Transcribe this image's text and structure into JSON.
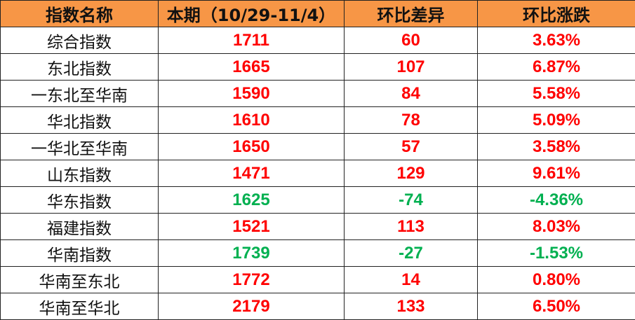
{
  "colors": {
    "header_bg": "#F79646",
    "up": "#FF0000",
    "down": "#00B050"
  },
  "headers": [
    "指数名称",
    "本期（10/29-11/4）",
    "环比差异",
    "环比涨跌"
  ],
  "rows": [
    {
      "name": "综合指数",
      "value": "1711",
      "diff": "60",
      "pct": "3.63%",
      "trend": "up"
    },
    {
      "name": "东北指数",
      "value": "1665",
      "diff": "107",
      "pct": "6.87%",
      "trend": "up"
    },
    {
      "name": "一东北至华南",
      "value": "1590",
      "diff": "84",
      "pct": "5.58%",
      "trend": "up"
    },
    {
      "name": "华北指数",
      "value": "1610",
      "diff": "78",
      "pct": "5.09%",
      "trend": "up"
    },
    {
      "name": "一华北至华南",
      "value": "1650",
      "diff": "57",
      "pct": "3.58%",
      "trend": "up"
    },
    {
      "name": "山东指数",
      "value": "1471",
      "diff": "129",
      "pct": "9.61%",
      "trend": "up"
    },
    {
      "name": "华东指数",
      "value": "1625",
      "diff": "-74",
      "pct": "-4.36%",
      "trend": "down"
    },
    {
      "name": "福建指数",
      "value": "1521",
      "diff": "113",
      "pct": "8.03%",
      "trend": "up"
    },
    {
      "name": "华南指数",
      "value": "1739",
      "diff": "-27",
      "pct": "-1.53%",
      "trend": "down"
    },
    {
      "name": "华南至东北",
      "value": "1772",
      "diff": "14",
      "pct": "0.80%",
      "trend": "up"
    },
    {
      "name": "华南至华北",
      "value": "2179",
      "diff": "133",
      "pct": "6.50%",
      "trend": "up"
    }
  ]
}
